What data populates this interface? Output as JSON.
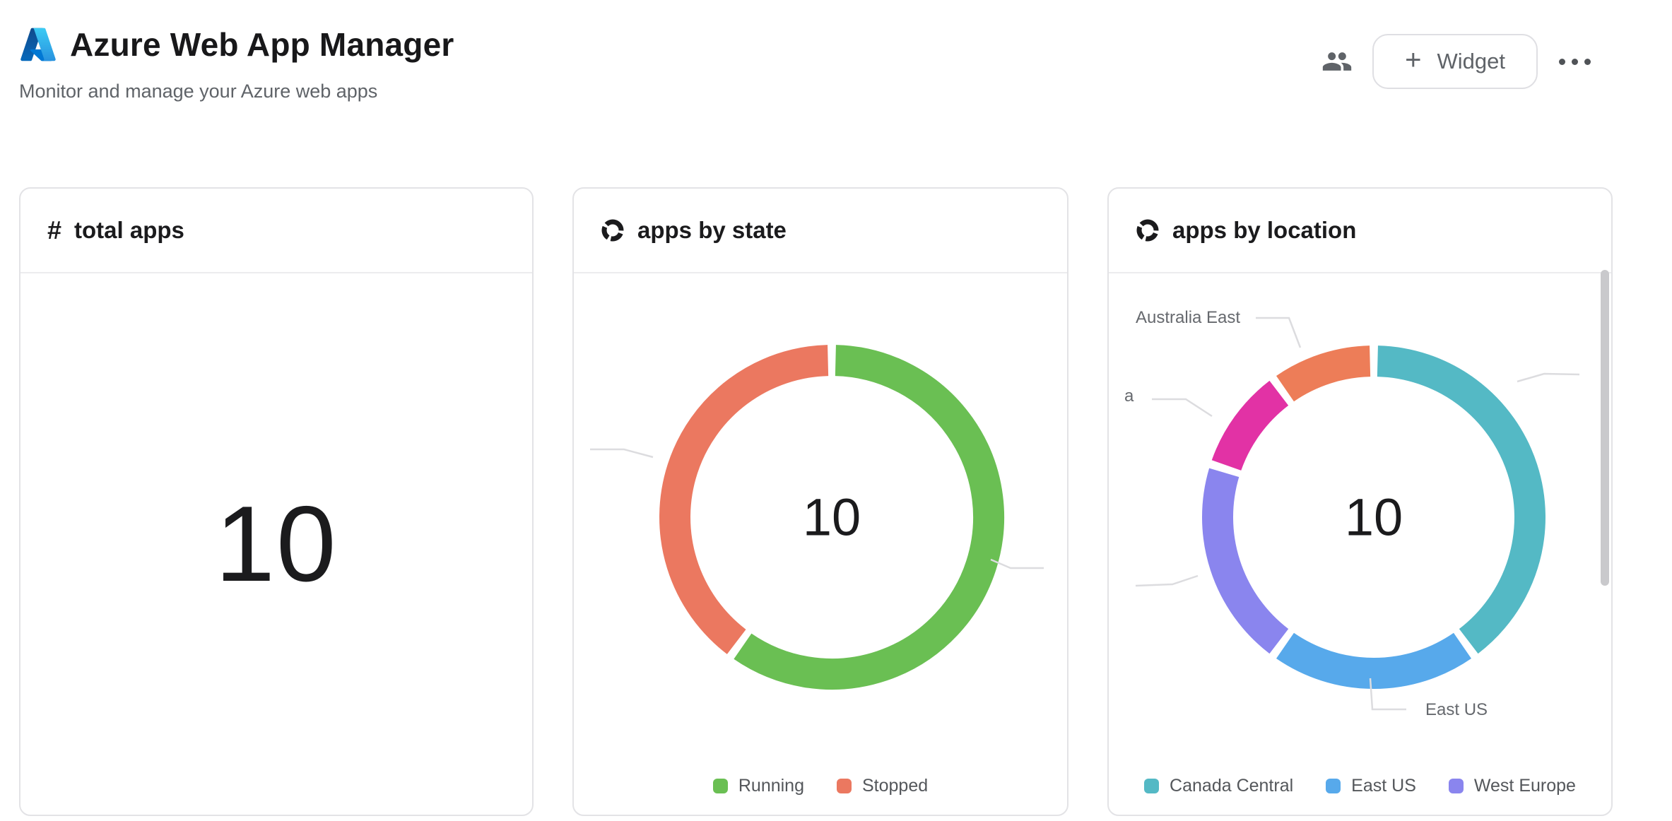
{
  "header": {
    "title": "Azure Web App Manager",
    "subtitle": "Monitor and manage your Azure web apps",
    "widget_button": {
      "plus": "+",
      "label": "Widget"
    }
  },
  "cards": [
    {
      "title": "total apps",
      "icon": "hash-icon",
      "icon_glyph": "#",
      "value": "10"
    },
    {
      "title": "apps by state",
      "icon": "donut-icon",
      "center_value": "10"
    },
    {
      "title": "apps by location",
      "icon": "donut-icon",
      "center_value": "10"
    }
  ],
  "chart_data": [
    {
      "type": "donut",
      "title": "apps by state",
      "center_label": "10",
      "total": 10,
      "segments": [
        {
          "label": "Running",
          "value": 6,
          "color": "#6ABF53"
        },
        {
          "label": "Stopped",
          "value": 4,
          "color": "#EB7860"
        }
      ],
      "legend": [
        "Running",
        "Stopped"
      ],
      "legend_position": "bottom",
      "start_angle_deg": 0,
      "direction": "clockwise"
    },
    {
      "type": "donut",
      "title": "apps by location",
      "center_label": "10",
      "total": 10,
      "segments": [
        {
          "label": "Canada Central",
          "value": 4,
          "color": "#54B9C5"
        },
        {
          "label": "East US",
          "value": 2,
          "color": "#57A9EB"
        },
        {
          "label": "West Europe",
          "value": 2,
          "color": "#8A85EE"
        },
        {
          "label": "a",
          "value": 1,
          "color": "#E232A5"
        },
        {
          "label": "Australia East",
          "value": 1,
          "color": "#ED7D58"
        }
      ],
      "point_labels": [
        "Australia East",
        "East US",
        "a"
      ],
      "legend": [
        "Canada Central",
        "East US",
        "West Europe"
      ],
      "legend_position": "bottom",
      "start_angle_deg": 0,
      "direction": "clockwise"
    }
  ]
}
